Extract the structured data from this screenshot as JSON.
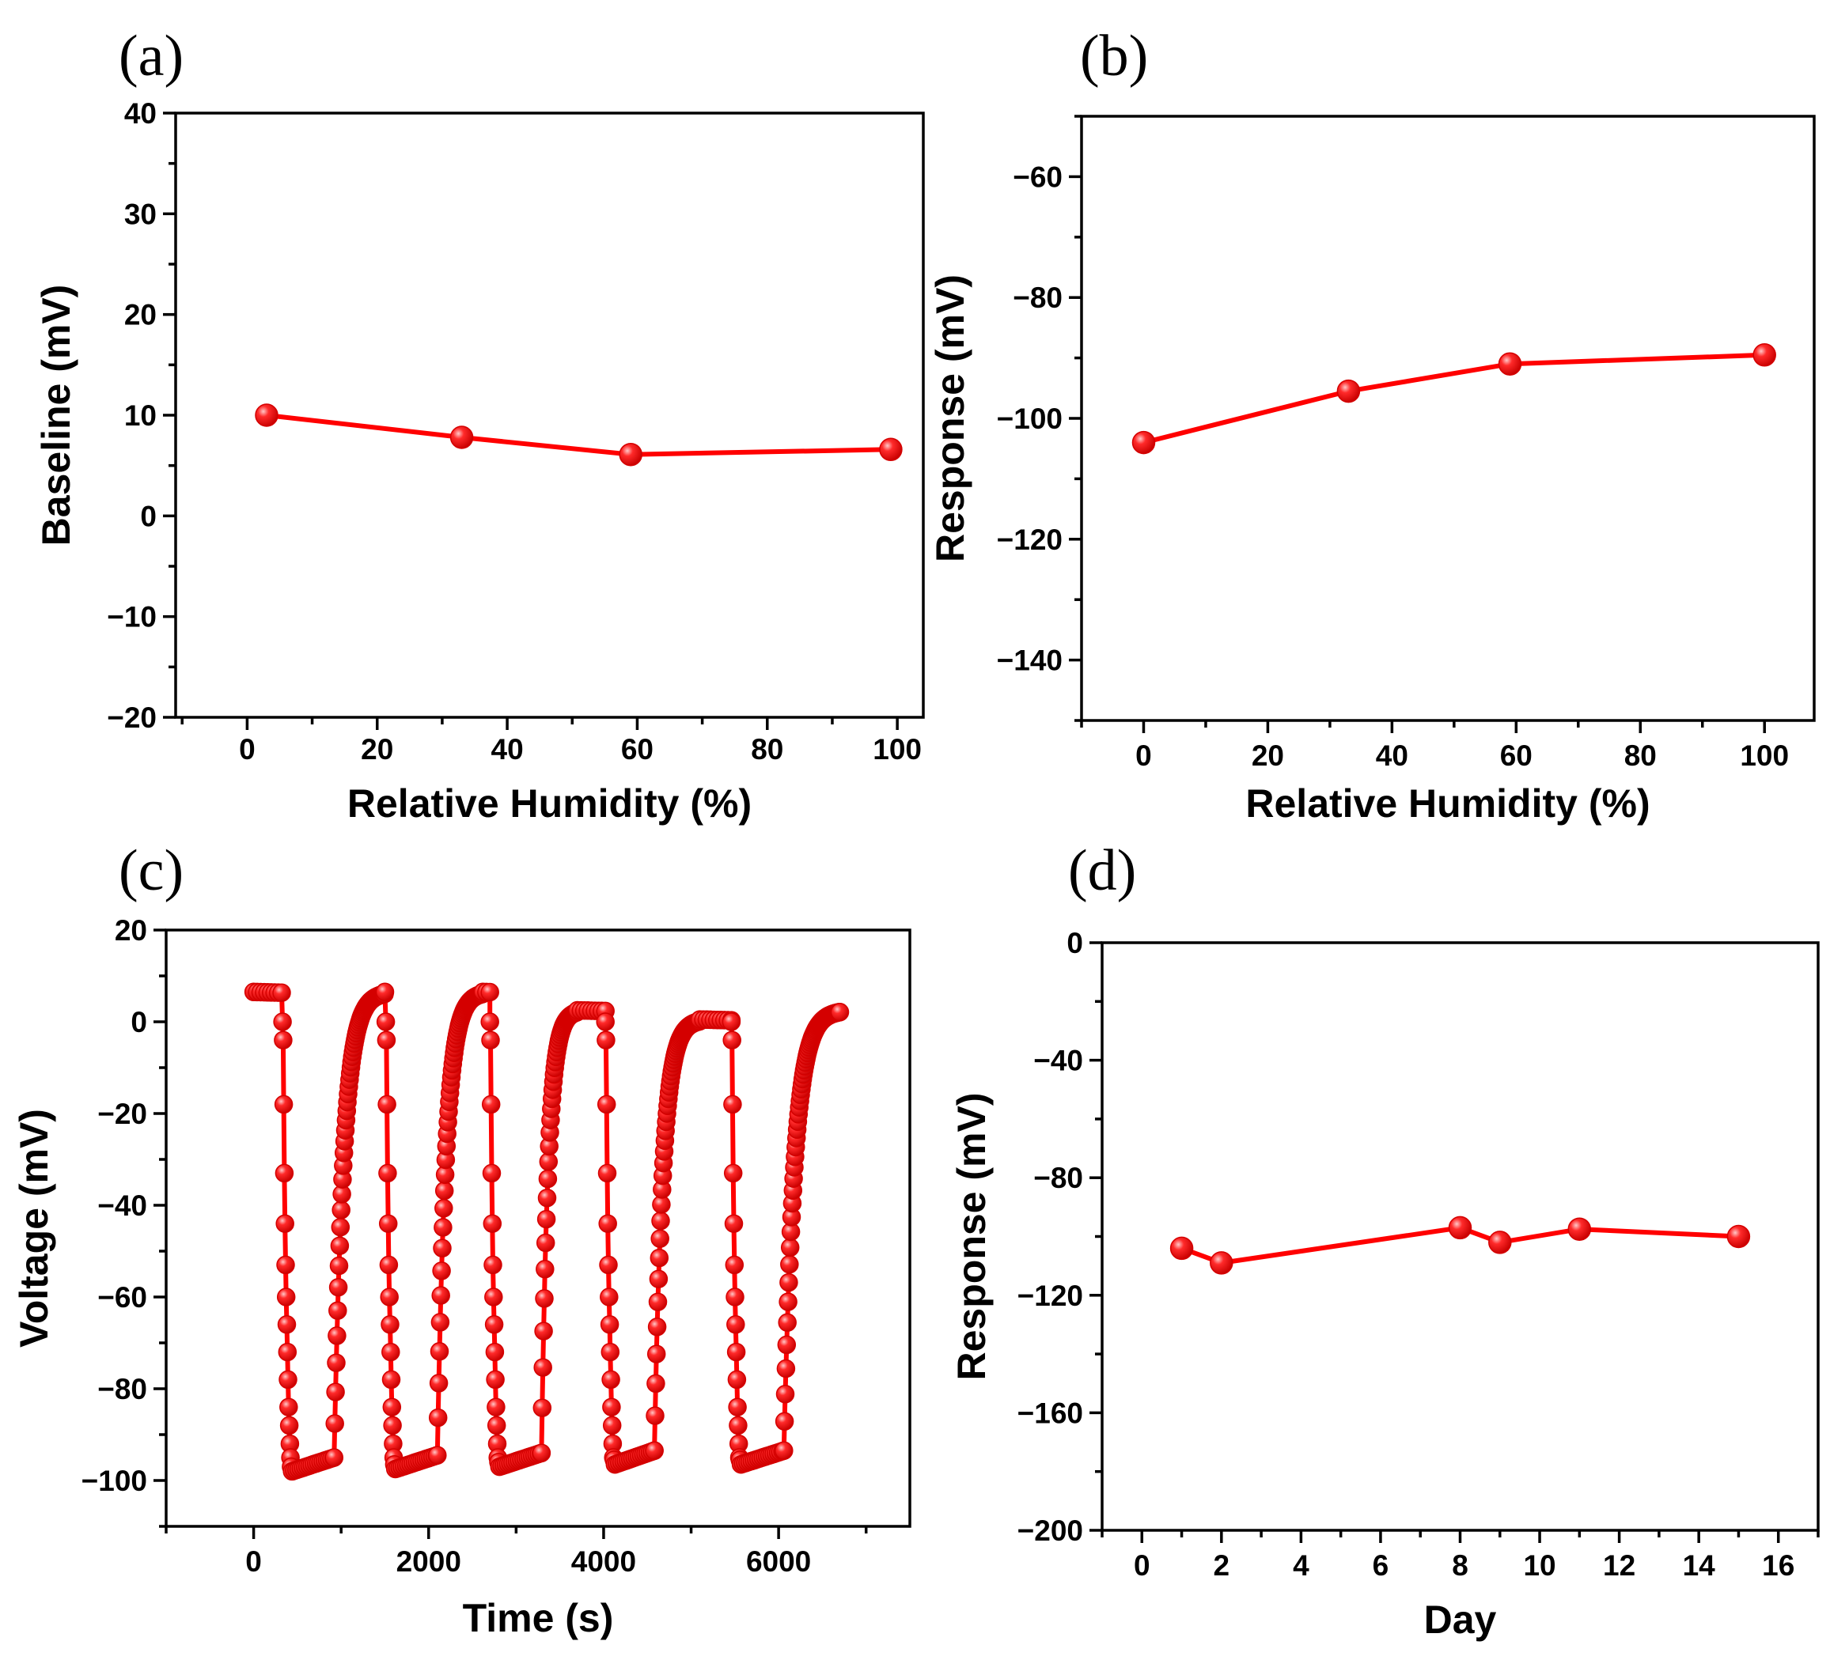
{
  "chart_data": [
    {
      "panel": "(a)",
      "type": "line",
      "xlabel": "Relative Humidity (%)",
      "ylabel": "Baseline (mV)",
      "xlim": [
        -11,
        104
      ],
      "ylim": [
        -20,
        40
      ],
      "xticks": [
        0,
        20,
        40,
        60,
        80,
        100
      ],
      "yticks": [
        -20,
        -10,
        0,
        10,
        20,
        30,
        40
      ],
      "series": [
        {
          "name": "Baseline",
          "color": "#ff0000",
          "x": [
            3,
            33,
            59,
            99
          ],
          "y": [
            10,
            7.8,
            6.1,
            6.6
          ]
        }
      ]
    },
    {
      "panel": "(b)",
      "type": "line",
      "xlabel": "Relative Humidity (%)",
      "ylabel": "Response (mV)",
      "xlim": [
        -10,
        108
      ],
      "ylim": [
        -150,
        -50
      ],
      "xticks": [
        0,
        20,
        40,
        60,
        80,
        100
      ],
      "yticks": [
        -140,
        -120,
        -100,
        -80,
        -60
      ],
      "series": [
        {
          "name": "Response",
          "color": "#ff0000",
          "x": [
            0,
            33,
            59,
            100
          ],
          "y": [
            -104,
            -95.5,
            -91,
            -89.5
          ]
        }
      ]
    },
    {
      "panel": "(c)",
      "type": "line",
      "xlabel": "Time (s)",
      "ylabel": "Voltage (mV)",
      "xlim": [
        -1000,
        7500
      ],
      "ylim": [
        -110,
        20
      ],
      "xticks": [
        0,
        2000,
        4000,
        6000
      ],
      "yticks": [
        -100,
        -80,
        -60,
        -40,
        -20,
        0,
        20
      ],
      "series": [
        {
          "name": "Voltage",
          "color": "#ff0000",
          "cycles": [
            {
              "start": 0,
              "drop": 330,
              "rise": 920,
              "high": 6.5,
              "low": -97
            },
            {
              "rise_end": 1500,
              "drop": 1510,
              "rise": 2100,
              "high": 6.5,
              "low": -96.5
            },
            {
              "rise_end": 2620,
              "drop": 2700,
              "rise": 3290,
              "high": 6.5,
              "low": -96
            },
            {
              "rise_end": 3700,
              "drop": 4020,
              "rise": 4580,
              "high": 2.5,
              "low": -95.5
            },
            {
              "rise_end": 5100,
              "drop": 5460,
              "rise": 6060,
              "high": 0.5,
              "low": -95.5
            },
            {
              "rise_end": 6700,
              "high": 2.5
            }
          ]
        }
      ]
    },
    {
      "panel": "(d)",
      "type": "line",
      "xlabel": "Day",
      "ylabel": "Response (mV)",
      "xlim": [
        -1,
        17
      ],
      "ylim": [
        -200,
        0
      ],
      "xticks": [
        0,
        2,
        4,
        6,
        8,
        10,
        12,
        14,
        16
      ],
      "yticks": [
        -200,
        -160,
        -120,
        -80,
        -40,
        0
      ],
      "series": [
        {
          "name": "Response",
          "color": "#ff0000",
          "x": [
            1,
            2,
            8,
            9,
            11,
            15
          ],
          "y": [
            -104,
            -109,
            -97,
            -102,
            -97.5,
            -100
          ]
        }
      ]
    }
  ]
}
